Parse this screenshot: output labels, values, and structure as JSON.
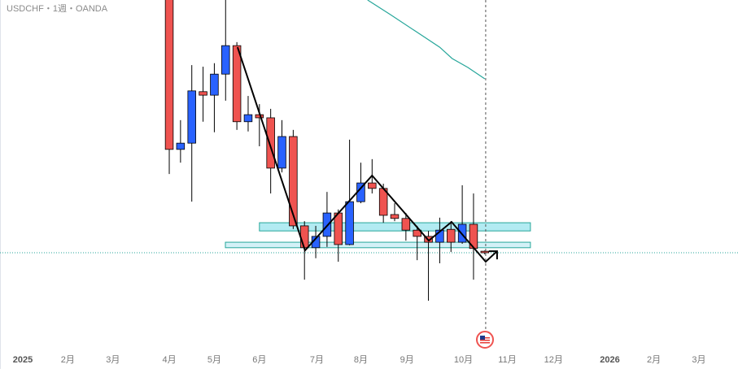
{
  "chart_data": {
    "type": "candlestick",
    "title": "USDCHF・1週・OANDA",
    "x": [
      13,
      14,
      15,
      16,
      17,
      18,
      19,
      20,
      21,
      22,
      23,
      24,
      25,
      26,
      27,
      28,
      29,
      30,
      31,
      32,
      33,
      34,
      35,
      36,
      37,
      38,
      39,
      40,
      41
    ],
    "open": [
      0.866,
      0.8267,
      0.8283,
      0.8415,
      0.8406,
      0.846,
      0.8533,
      0.8338,
      0.8356,
      0.8348,
      0.8219,
      0.83,
      0.8071,
      0.8015,
      0.8044,
      0.8104,
      0.8023,
      0.8133,
      0.8181,
      0.8167,
      0.81,
      0.809,
      0.806,
      0.8044,
      0.8029,
      0.8062,
      0.8029,
      0.8075,
      0.8006
    ],
    "high": [
      0.868,
      0.8342,
      0.8483,
      0.8479,
      0.8488,
      0.867,
      0.8542,
      0.8404,
      0.8383,
      0.8371,
      0.8342,
      0.8317,
      0.8083,
      0.8071,
      0.8158,
      0.8113,
      0.8292,
      0.8233,
      0.8242,
      0.8179,
      0.8129,
      0.8104,
      0.8071,
      0.8058,
      0.8092,
      0.8083,
      0.8175,
      0.8154,
      0.8008
    ],
    "low": [
      0.8204,
      0.8233,
      0.8133,
      0.8338,
      0.8311,
      0.8392,
      0.8317,
      0.8313,
      0.8275,
      0.8154,
      0.8208,
      0.8063,
      0.7933,
      0.7988,
      0.8017,
      0.7979,
      0.8021,
      0.8129,
      0.8154,
      0.8079,
      0.8083,
      0.8033,
      0.7983,
      0.7879,
      0.7975,
      0.8004,
      0.8025,
      0.7933,
      0.7998
    ],
    "close": [
      0.8267,
      0.8283,
      0.8417,
      0.8406,
      0.846,
      0.8533,
      0.8338,
      0.8356,
      0.8348,
      0.8219,
      0.83,
      0.8071,
      0.8015,
      0.8044,
      0.8104,
      0.8023,
      0.8133,
      0.8181,
      0.8167,
      0.8098,
      0.809,
      0.806,
      0.8044,
      0.8029,
      0.806,
      0.8029,
      0.8075,
      0.8013,
      0.8002
    ],
    "up_color": "#2962ff",
    "down_color": "#ef5350",
    "series": [
      {
        "color": "#26a69a",
        "x": [
          30.6,
          32.6,
          34.8,
          37.0,
          38.1,
          39.5,
          41.0
        ],
        "values": [
          0.865,
          0.8613,
          0.8571,
          0.8529,
          0.85,
          0.8477,
          0.8448
        ]
      },
      {
        "color": "#000000",
        "x": [
          19.06,
          25.05,
          31.0,
          36.03,
          38.05,
          40.07,
          41.08,
          42.09
        ],
        "values": [
          0.8529,
          0.8008,
          0.82,
          0.8033,
          0.8081,
          0.8013,
          0.7979,
          0.8006
        ]
      }
    ],
    "zones": [
      {
        "x": [
          21.0,
          45.05
        ],
        "y": [
          0.8058,
          0.8079
        ],
        "color": "#b2ebf2"
      },
      {
        "x": [
          17.98,
          45.05
        ],
        "y": [
          0.8015,
          0.8029
        ],
        "color": "#d4f1f7"
      }
    ],
    "price_line": 0.8002,
    "time_line": 41.08,
    "xlim": [
      -2.02,
      63.47
    ],
    "ylim": [
      0.775,
      0.865
    ],
    "xticks": [
      {
        "value": 0,
        "label": "2025"
      },
      {
        "value": 4.0,
        "label": "2月"
      },
      {
        "value": 8.0,
        "label": "3月"
      },
      {
        "value": 13.0,
        "label": "4月"
      },
      {
        "value": 17.0,
        "label": "5月"
      },
      {
        "value": 21.0,
        "label": "6月"
      },
      {
        "value": 26.1,
        "label": "7月"
      },
      {
        "value": 30.0,
        "label": "8月"
      },
      {
        "value": 34.1,
        "label": "9月"
      },
      {
        "value": 39.1,
        "label": "10月"
      },
      {
        "value": 43.0,
        "label": "11月"
      },
      {
        "value": 47.1,
        "label": "12月"
      },
      {
        "value": 52.1,
        "label": "2026"
      },
      {
        "value": 56.0,
        "label": "2月"
      },
      {
        "value": 60.0,
        "label": "3月"
      }
    ]
  }
}
